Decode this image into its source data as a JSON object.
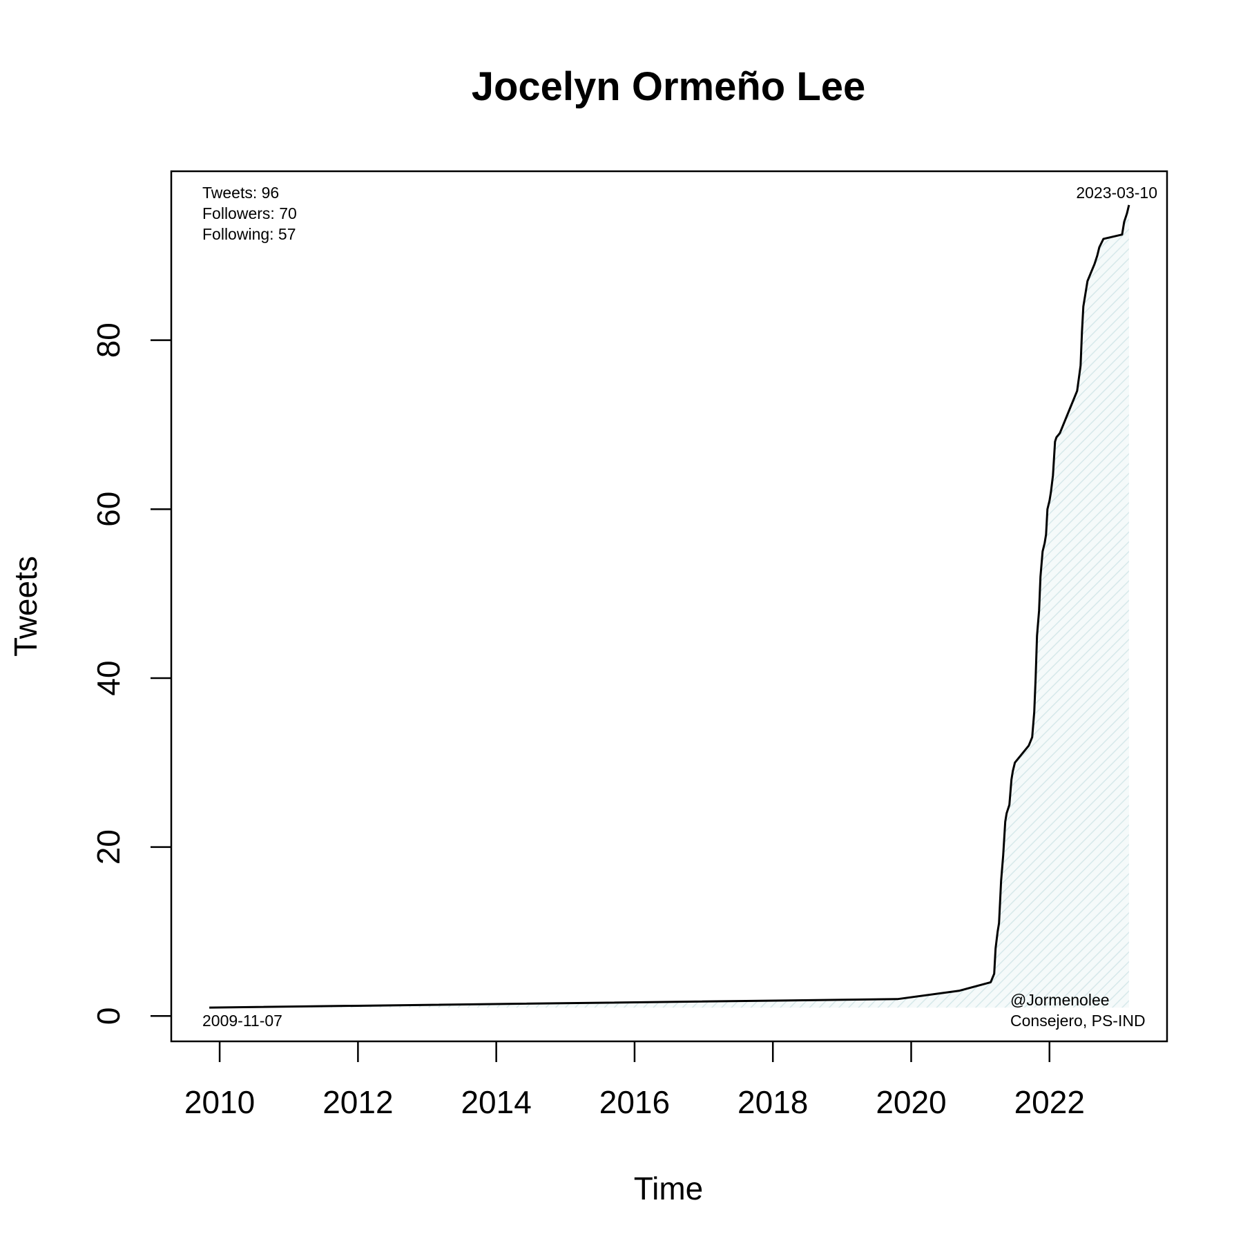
{
  "chart_data": {
    "type": "area",
    "title": "Jocelyn Ormeño Lee",
    "xlabel": "Time",
    "ylabel": "Tweets",
    "xlim": [
      2009.3,
      2023.7
    ],
    "ylim": [
      -3,
      100
    ],
    "x_ticks": [
      2010,
      2012,
      2014,
      2016,
      2018,
      2020,
      2022
    ],
    "y_ticks": [
      0,
      20,
      40,
      60,
      80
    ],
    "grid": false,
    "colors": {
      "line": "#000000",
      "fill": "#e6f0f0"
    },
    "annotations": {
      "tweets": "Tweets: 96",
      "followers": "Followers: 70",
      "following": "Following: 57",
      "start_date": "2009-11-07",
      "end_date": "2023-03-10",
      "handle": "@Jormenolee",
      "role": "Consejero, PS-IND"
    },
    "series": [
      {
        "x": [
          2009.85,
          2019.8,
          2020.7,
          2021.15,
          2021.2,
          2021.22,
          2021.25,
          2021.27,
          2021.3,
          2021.33,
          2021.36,
          2021.38,
          2021.42,
          2021.45,
          2021.47,
          2021.5,
          2021.55,
          2021.6,
          2021.7,
          2021.75,
          2021.78,
          2021.8,
          2021.82,
          2021.85,
          2021.87,
          2021.9,
          2021.93,
          2021.95,
          2021.97,
          2022.0,
          2022.02,
          2022.05,
          2022.08,
          2022.1,
          2022.15,
          2022.3,
          2022.4,
          2022.45,
          2022.47,
          2022.49,
          2022.51,
          2022.55,
          2022.6,
          2022.65,
          2022.69,
          2022.72,
          2022.75,
          2022.78,
          2023.05,
          2023.08,
          2023.12,
          2023.15
        ],
        "y": [
          1,
          2,
          3,
          4,
          5,
          8,
          10,
          11,
          16,
          19,
          23,
          24,
          25,
          28,
          29,
          30,
          30.5,
          31,
          32,
          33,
          36,
          40,
          45,
          48,
          52,
          55,
          56,
          57,
          60,
          61,
          62,
          64,
          68,
          68.5,
          69,
          72,
          74,
          77,
          81,
          84,
          85,
          87,
          88,
          89,
          90,
          91,
          91.5,
          92,
          92.5,
          94,
          95,
          96
        ]
      }
    ]
  }
}
